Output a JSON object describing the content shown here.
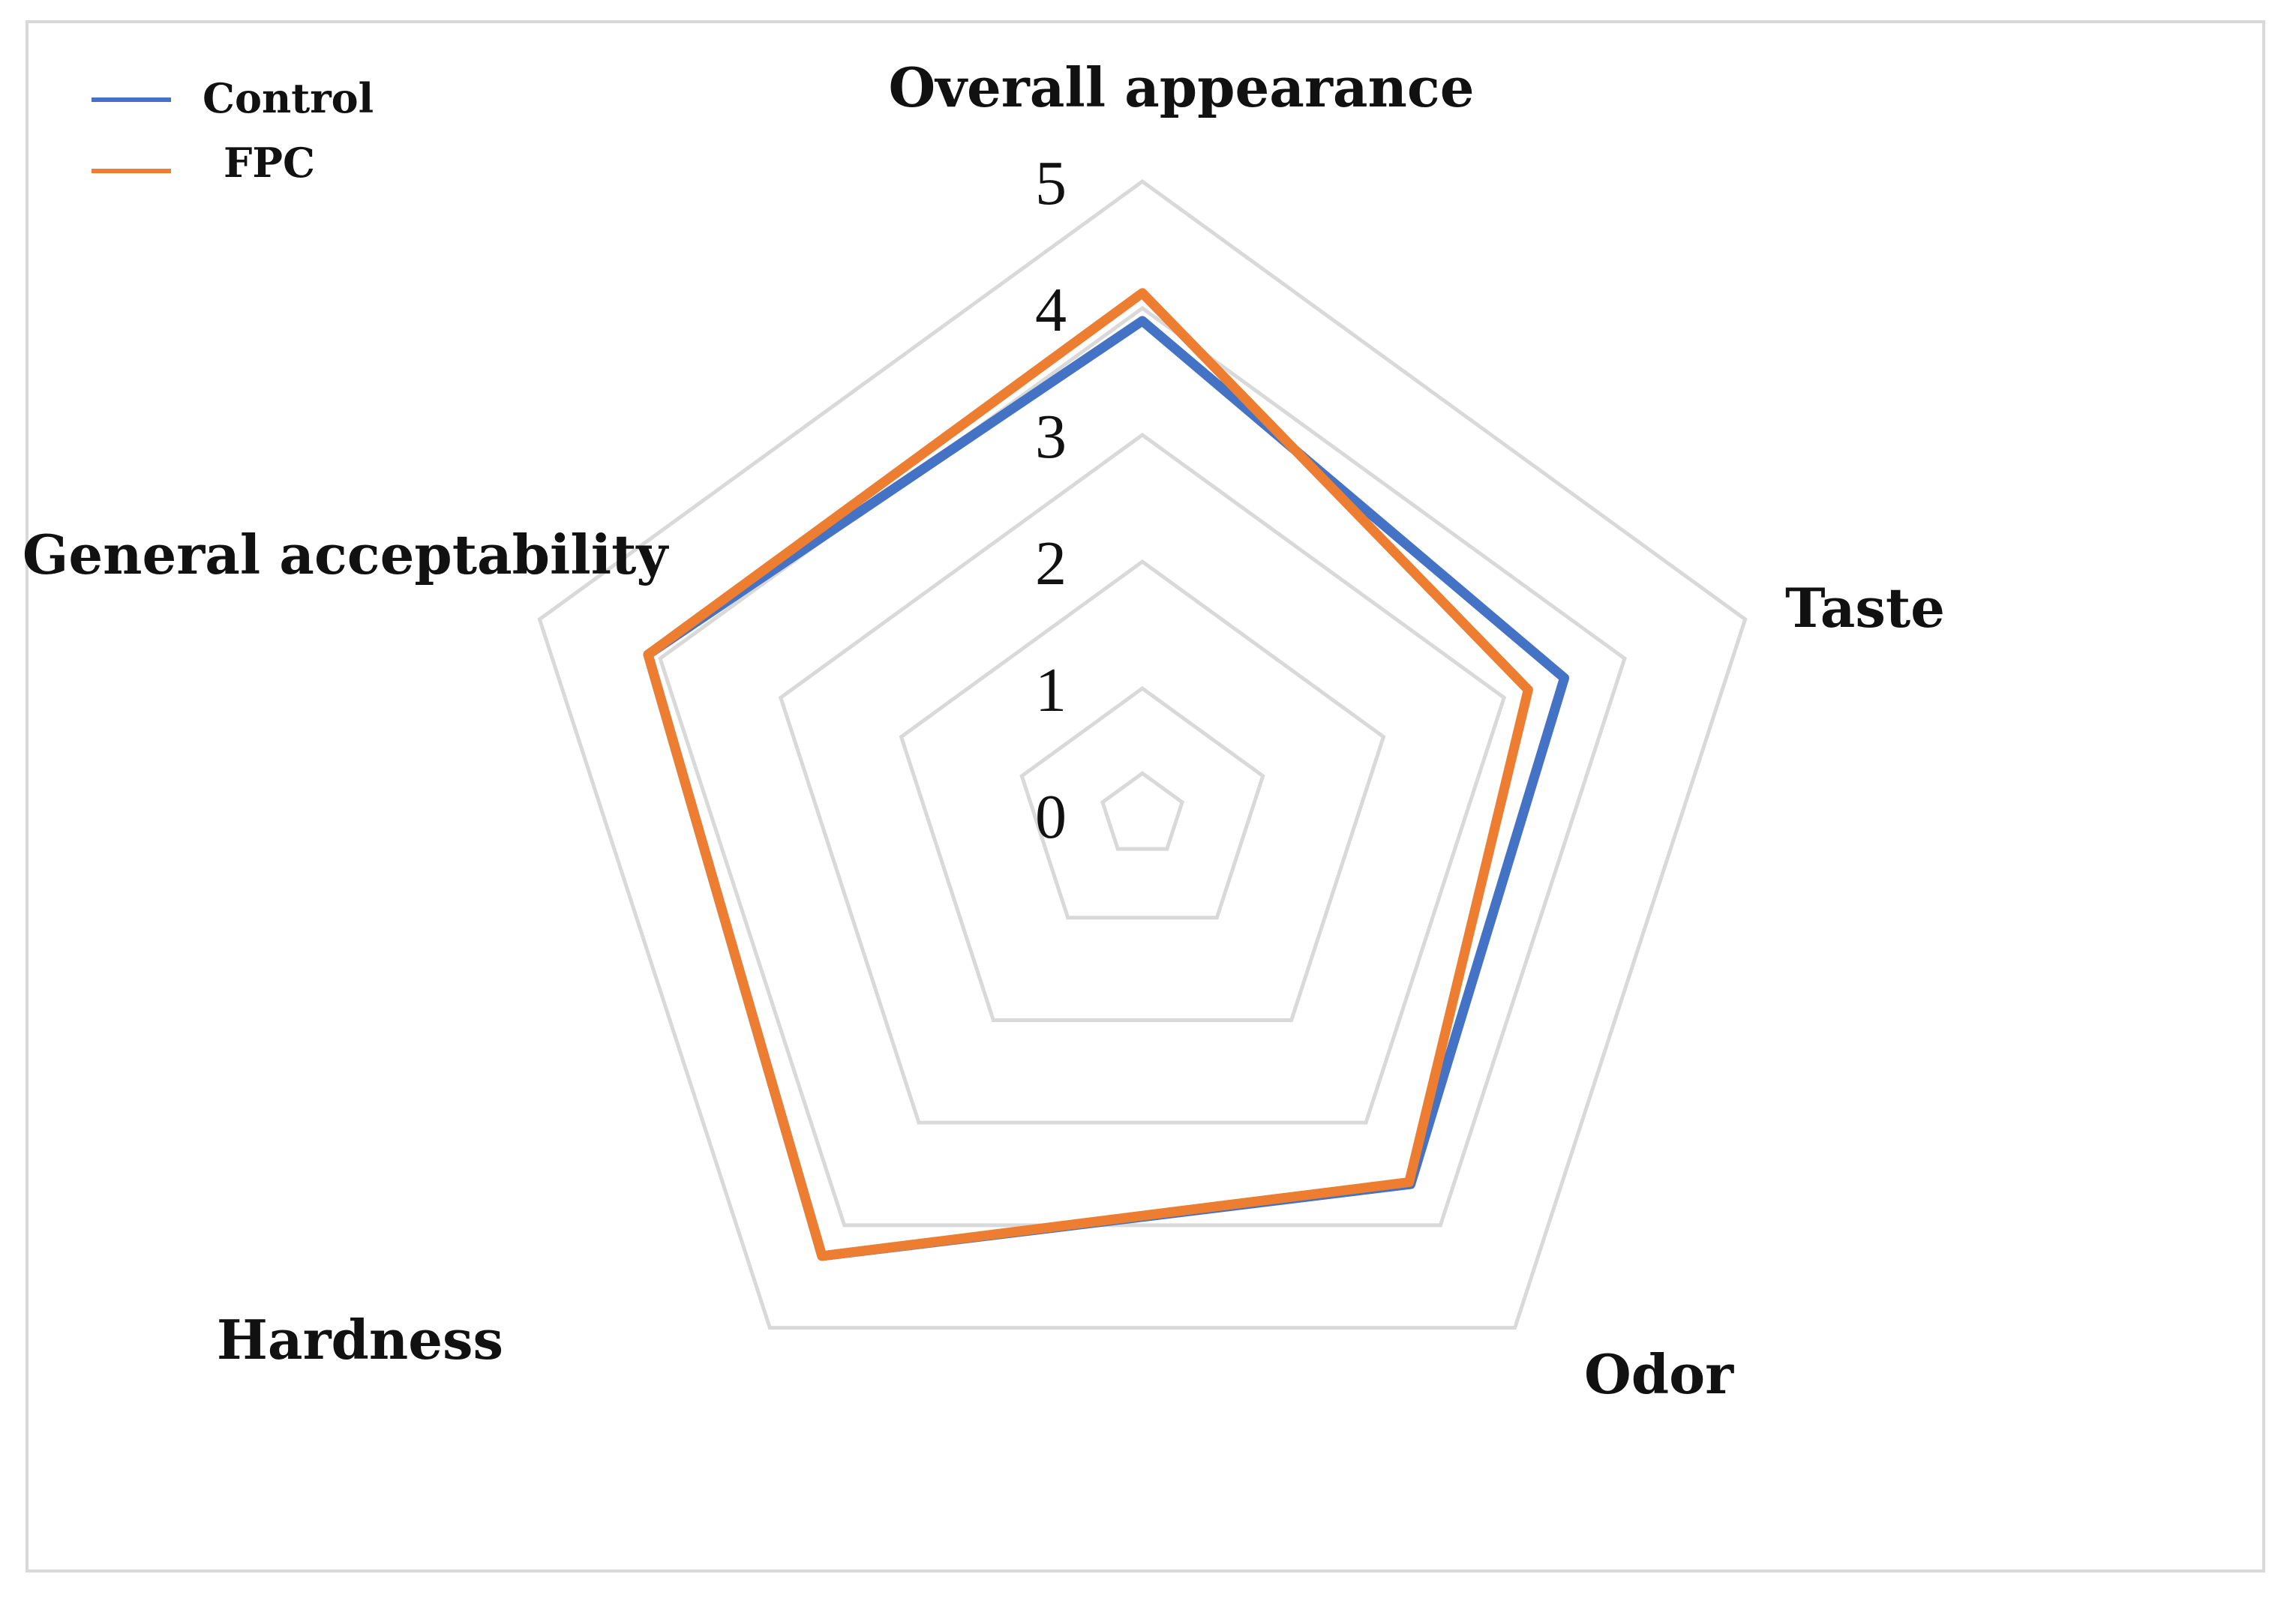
{
  "chart_data": {
    "type": "radar",
    "axes": [
      "Overall appearance",
      "Taste",
      "Odor",
      "Hardness",
      "General acceptability"
    ],
    "ticks": [
      "0",
      "1",
      "2",
      "3",
      "4",
      "5"
    ],
    "rlim": [
      0,
      5
    ],
    "grid": true,
    "legend_position": "top-left",
    "series": [
      {
        "name": "Control",
        "color": "#4472c4",
        "values": [
          3.9,
          3.5,
          3.6,
          4.3,
          4.1
        ]
      },
      {
        "name": "FPC",
        "color": "#ed7d31",
        "values": [
          4.12,
          3.2,
          3.58,
          4.3,
          4.1
        ]
      }
    ]
  }
}
